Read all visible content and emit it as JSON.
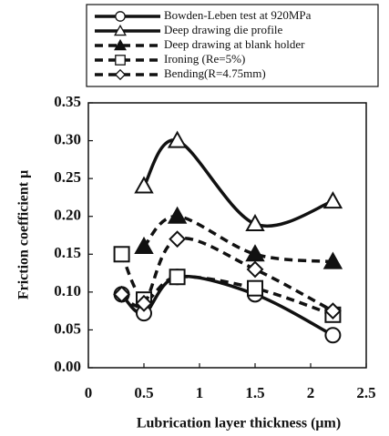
{
  "chart_data": {
    "type": "line",
    "xlabel": "Lubrication layer thickness (μm)",
    "ylabel": "Friction coefficient μ",
    "xlim": [
      0,
      2.5
    ],
    "xticks": [
      0,
      0.5,
      1,
      1.5,
      2,
      2.5
    ],
    "ylim": [
      0,
      0.35
    ],
    "yticks": [
      {
        "value": 0,
        "label": "0.00"
      },
      {
        "value": 0.05,
        "label": "0.05"
      },
      {
        "value": 0.1,
        "label": "0.10"
      },
      {
        "value": 0.15,
        "label": "0.15"
      },
      {
        "value": 0.2,
        "label": "0.20"
      },
      {
        "value": 0.25,
        "label": "0.25"
      },
      {
        "value": 0.3,
        "label": "0.30"
      },
      {
        "value": 0.35,
        "label": "0.35"
      }
    ],
    "series": [
      {
        "name": "Bowden-Leben test at 920MPa",
        "color": "#111111",
        "dash": "solid",
        "marker": "circle",
        "filled": false,
        "x": [
          0.3,
          0.5,
          0.8,
          1.5,
          2.2
        ],
        "values": [
          0.097,
          0.072,
          0.12,
          0.097,
          0.043
        ]
      },
      {
        "name": "Deep drawing die profile",
        "color": "#111111",
        "dash": "solid",
        "marker": "triangle",
        "filled": false,
        "x": [
          0.5,
          0.8,
          1.5,
          2.2
        ],
        "values": [
          0.24,
          0.3,
          0.19,
          0.22
        ]
      },
      {
        "name": "Deep drawing at blank holder",
        "color": "#111111",
        "dash": "dashed",
        "marker": "triangle",
        "filled": true,
        "x": [
          0.5,
          0.8,
          1.5,
          2.2
        ],
        "values": [
          0.16,
          0.2,
          0.15,
          0.14
        ]
      },
      {
        "name": "Ironing (Re=5%)",
        "color": "#111111",
        "dash": "dashed",
        "marker": "square",
        "filled": false,
        "x": [
          0.3,
          0.5,
          0.8,
          1.5,
          2.2
        ],
        "values": [
          0.15,
          0.09,
          0.12,
          0.105,
          0.07
        ]
      },
      {
        "name": "Bending(R=4.75mm)",
        "color": "#111111",
        "dash": "dashed",
        "marker": "diamond",
        "filled": false,
        "x": [
          0.3,
          0.5,
          0.8,
          1.5,
          2.2
        ],
        "values": [
          0.097,
          0.085,
          0.17,
          0.13,
          0.075
        ]
      }
    ]
  }
}
